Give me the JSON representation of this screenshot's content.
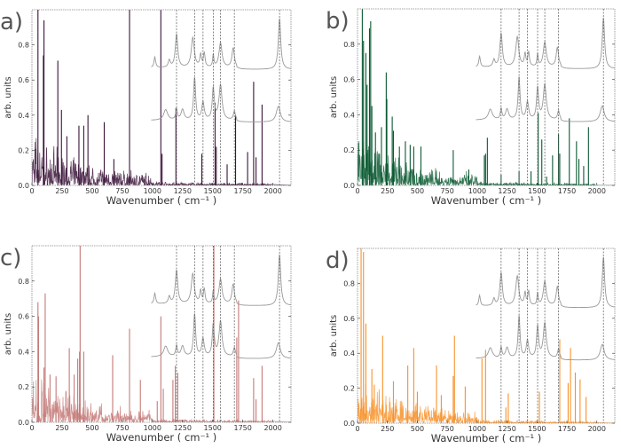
{
  "chart_data": [
    {
      "panel": "a)",
      "type": "line",
      "color": "#3b1439",
      "xlabel": "Wavenumber ( cm⁻¹ )",
      "ylabel": "arb. units",
      "xlim": [
        0,
        2150
      ],
      "ylim": [
        0,
        1.0
      ],
      "peaks": [
        [
          50,
          1.0
        ],
        [
          100,
          0.94
        ],
        [
          95,
          0.74
        ],
        [
          215,
          0.71
        ],
        [
          245,
          0.43
        ],
        [
          290,
          0.28
        ],
        [
          390,
          0.34
        ],
        [
          430,
          0.34
        ],
        [
          465,
          0.4
        ],
        [
          600,
          0.36
        ],
        [
          680,
          0.15
        ],
        [
          810,
          1.0
        ],
        [
          1070,
          1.0
        ],
        [
          1080,
          0.18
        ],
        [
          1195,
          0.44
        ],
        [
          1410,
          0.18
        ],
        [
          1520,
          0.47
        ],
        [
          1530,
          0.22
        ],
        [
          1620,
          0.12
        ],
        [
          1690,
          0.4
        ],
        [
          1790,
          0.19
        ],
        [
          1840,
          0.59
        ],
        [
          1860,
          0.16
        ],
        [
          1910,
          0.46
        ]
      ]
    },
    {
      "panel": "b)",
      "type": "line",
      "color": "#0b5a33",
      "xlabel": "Wavenumber ( cm⁻¹ )",
      "ylabel": "arb. units",
      "xlim": [
        0,
        2150
      ],
      "ylim": [
        0,
        1.0
      ],
      "peaks": [
        [
          40,
          1.0
        ],
        [
          50,
          0.82
        ],
        [
          70,
          0.75
        ],
        [
          80,
          0.57
        ],
        [
          100,
          0.89
        ],
        [
          110,
          0.93
        ],
        [
          120,
          0.45
        ],
        [
          150,
          0.3
        ],
        [
          200,
          0.33
        ],
        [
          240,
          0.64
        ],
        [
          245,
          0.49
        ],
        [
          290,
          0.39
        ],
        [
          300,
          0.31
        ],
        [
          350,
          0.22
        ],
        [
          400,
          0.25
        ],
        [
          440,
          0.23
        ],
        [
          470,
          0.22
        ],
        [
          530,
          0.22
        ],
        [
          800,
          0.2
        ],
        [
          930,
          0.09
        ],
        [
          1060,
          0.17
        ],
        [
          1070,
          0.18
        ],
        [
          1085,
          0.27
        ],
        [
          1200,
          0.06
        ],
        [
          1350,
          0.08
        ],
        [
          1450,
          0.08
        ],
        [
          1510,
          0.41
        ],
        [
          1540,
          0.26
        ],
        [
          1580,
          0.05
        ],
        [
          1630,
          0.17
        ],
        [
          1680,
          0.29
        ],
        [
          1690,
          0.18
        ],
        [
          1770,
          0.38
        ],
        [
          1830,
          0.25
        ],
        [
          1850,
          0.15
        ],
        [
          1890,
          0.11
        ],
        [
          1930,
          0.33
        ]
      ]
    },
    {
      "panel": "c)",
      "type": "line",
      "color": "#c47a78",
      "xlabel": "Wavenumber ( cm⁻¹ )",
      "ylabel": "arb. units",
      "xlim": [
        0,
        2150
      ],
      "ylim": [
        0,
        1.0
      ],
      "peaks": [
        [
          50,
          0.68
        ],
        [
          55,
          0.6
        ],
        [
          100,
          0.31
        ],
        [
          110,
          0.73
        ],
        [
          150,
          0.27
        ],
        [
          200,
          0.26
        ],
        [
          310,
          0.42
        ],
        [
          350,
          0.27
        ],
        [
          380,
          0.36
        ],
        [
          395,
          0.4
        ],
        [
          400,
          1.0
        ],
        [
          430,
          0.4
        ],
        [
          670,
          0.38
        ],
        [
          810,
          0.53
        ],
        [
          900,
          0.24
        ],
        [
          1040,
          0.12
        ],
        [
          1070,
          0.6
        ],
        [
          1090,
          0.19
        ],
        [
          1170,
          0.24
        ],
        [
          1190,
          0.32
        ],
        [
          1210,
          0.28
        ],
        [
          1510,
          1.0
        ],
        [
          1700,
          0.48
        ],
        [
          1715,
          0.69
        ],
        [
          1840,
          0.25
        ],
        [
          1860,
          0.13
        ],
        [
          1910,
          0.32
        ]
      ]
    },
    {
      "panel": "d)",
      "type": "line",
      "color": "#f7922a",
      "xlabel": "Wavenumber ( cm⁻¹ )",
      "ylabel": "arb. units",
      "xlim": [
        0,
        2150
      ],
      "ylim": [
        0,
        1.0
      ],
      "peaks": [
        [
          30,
          1.0
        ],
        [
          50,
          0.98
        ],
        [
          70,
          0.57
        ],
        [
          120,
          0.31
        ],
        [
          140,
          0.22
        ],
        [
          210,
          0.5
        ],
        [
          300,
          0.24
        ],
        [
          420,
          0.33
        ],
        [
          470,
          0.43
        ],
        [
          500,
          0.18
        ],
        [
          660,
          0.33
        ],
        [
          700,
          0.16
        ],
        [
          800,
          0.27
        ],
        [
          810,
          0.5
        ],
        [
          900,
          0.21
        ],
        [
          1040,
          0.37
        ],
        [
          1070,
          0.42
        ],
        [
          1240,
          0.09
        ],
        [
          1260,
          0.17
        ],
        [
          1520,
          0.18
        ],
        [
          1690,
          0.48
        ],
        [
          1760,
          0.23
        ],
        [
          1780,
          0.43
        ],
        [
          1820,
          0.29
        ],
        [
          1860,
          0.25
        ],
        [
          1910,
          0.15
        ]
      ]
    }
  ],
  "reference": {
    "color": "#999999",
    "x_start": 990,
    "upper": {
      "baseline": 0.67,
      "peaks": [
        [
          1020,
          0.06,
          8
        ],
        [
          1140,
          0.04,
          10
        ],
        [
          1200,
          0.19,
          12
        ],
        [
          1335,
          0.17,
          15
        ],
        [
          1400,
          0.07,
          8
        ],
        [
          1430,
          0.08,
          8
        ],
        [
          1505,
          0.07,
          6
        ],
        [
          1565,
          0.14,
          15
        ],
        [
          1670,
          0.11,
          12
        ],
        [
          2055,
          0.29,
          12
        ]
      ]
    },
    "lower": {
      "baseline": 0.37,
      "peaks": [
        [
          1110,
          0.06,
          20
        ],
        [
          1200,
          0.06,
          8
        ],
        [
          1250,
          0.06,
          15
        ],
        [
          1350,
          0.24,
          10
        ],
        [
          1420,
          0.1,
          12
        ],
        [
          1505,
          0.18,
          10
        ],
        [
          1565,
          0.2,
          15
        ],
        [
          1680,
          0.05,
          10
        ],
        [
          2045,
          0.09,
          20
        ]
      ]
    },
    "dashed_lines": [
      1200,
      1350,
      1420,
      1505,
      1565,
      1680,
      2055
    ]
  },
  "xticks": [
    0,
    250,
    500,
    750,
    1000,
    1250,
    1500,
    1750,
    2000
  ],
  "yticks": [
    0.0,
    0.2,
    0.4,
    0.6,
    0.8
  ],
  "ytick_labels": [
    "0.0",
    "0.2",
    "0.4",
    "0.6",
    "0.8"
  ]
}
